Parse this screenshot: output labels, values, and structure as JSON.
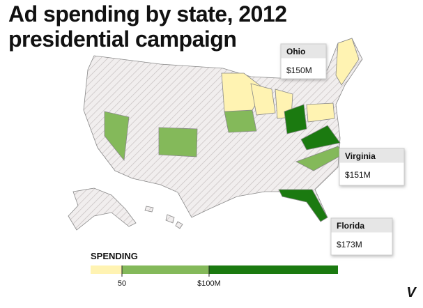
{
  "title": "Ad spending by state, 2012 presidential campaign",
  "callouts": [
    {
      "name": "Ohio",
      "label": "$150M"
    },
    {
      "name": "Virginia",
      "label": "$151M"
    },
    {
      "name": "Florida",
      "label": "$173M"
    }
  ],
  "legend": {
    "title": "SPENDING",
    "bins": [
      32,
      50,
      100,
      174
    ],
    "colors": [
      "#fff3b2",
      "#84b95a",
      "#1b7a10"
    ],
    "ticks": [
      50,
      {
        "value": 100,
        "label": "$100M"
      }
    ]
  },
  "logo": "V"
}
